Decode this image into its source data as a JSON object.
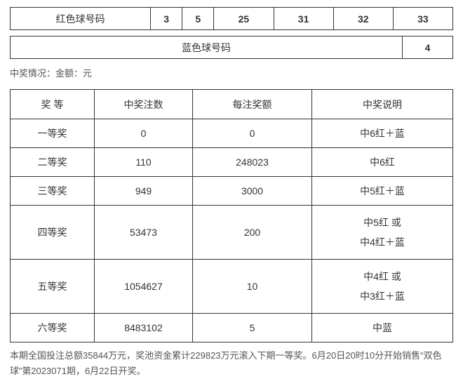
{
  "red_ball": {
    "label": "红色球号码",
    "numbers": [
      "3",
      "5",
      "25",
      "31",
      "32",
      "33"
    ]
  },
  "blue_ball": {
    "label": "蓝色球号码",
    "number": "4"
  },
  "status_line": "中奖情况：金额：元",
  "prize_header": {
    "tier": "奖 等",
    "count": "中奖注数",
    "amount": "每注奖额",
    "desc": "中奖说明"
  },
  "prizes": [
    {
      "tier": "一等奖",
      "count": "0",
      "amount": "0",
      "desc": "中6红＋蓝"
    },
    {
      "tier": "二等奖",
      "count": "110",
      "amount": "248023",
      "desc": "中6红"
    },
    {
      "tier": "三等奖",
      "count": "949",
      "amount": "3000",
      "desc": "中5红＋蓝"
    },
    {
      "tier": "四等奖",
      "count": "53473",
      "amount": "200",
      "desc": "中5红 或\n中4红＋蓝"
    },
    {
      "tier": "五等奖",
      "count": "1054627",
      "amount": "10",
      "desc": "中4红 或\n中3红＋蓝"
    },
    {
      "tier": "六等奖",
      "count": "8483102",
      "amount": "5",
      "desc": "中蓝"
    }
  ],
  "footer": "本期全国投注总额35844万元，奖池资金累计229823万元滚入下期一等奖。6月20日20时10分开始销售“双色球”第2023071期，6月22日开奖。",
  "colors": {
    "border": "#333333",
    "text": "#333333",
    "muted": "#555555",
    "background": "#ffffff"
  }
}
